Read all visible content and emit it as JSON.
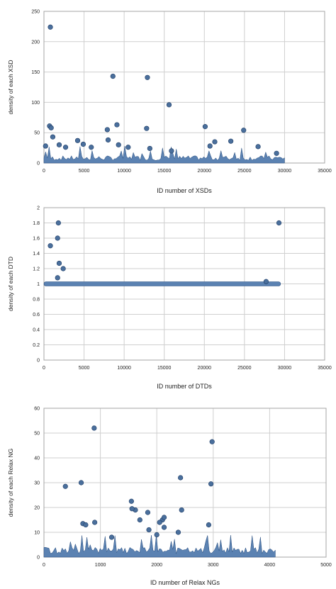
{
  "chart_data": [
    {
      "type": "scatter",
      "xlabel": "ID number of XSDs",
      "ylabel": "density of each XSD",
      "xlim": [
        0,
        35000
      ],
      "ylim": [
        0,
        250
      ],
      "x_ticks": [
        "0",
        "5000",
        "10000",
        "15000",
        "20000",
        "25000",
        "30000",
        "35000"
      ],
      "y_ticks": [
        "0",
        "50",
        "100",
        "150",
        "200",
        "250"
      ],
      "grid": true,
      "x_max_id": 30000,
      "baseline_band": {
        "typical_max": 12,
        "peak_max": 28
      },
      "points": [
        {
          "x": 800,
          "y": 224
        },
        {
          "x": 8600,
          "y": 143
        },
        {
          "x": 12900,
          "y": 141
        },
        {
          "x": 15600,
          "y": 96
        },
        {
          "x": 700,
          "y": 61
        },
        {
          "x": 900,
          "y": 58
        },
        {
          "x": 9100,
          "y": 63
        },
        {
          "x": 7900,
          "y": 55
        },
        {
          "x": 12800,
          "y": 57
        },
        {
          "x": 20100,
          "y": 60
        },
        {
          "x": 24900,
          "y": 54
        },
        {
          "x": 4200,
          "y": 37
        },
        {
          "x": 8000,
          "y": 38
        },
        {
          "x": 1100,
          "y": 43
        },
        {
          "x": 1900,
          "y": 30
        },
        {
          "x": 4900,
          "y": 31
        },
        {
          "x": 23300,
          "y": 36
        },
        {
          "x": 200,
          "y": 28
        },
        {
          "x": 10500,
          "y": 26
        },
        {
          "x": 9300,
          "y": 30
        },
        {
          "x": 2700,
          "y": 26
        },
        {
          "x": 5900,
          "y": 26
        },
        {
          "x": 13200,
          "y": 24
        },
        {
          "x": 15900,
          "y": 20
        },
        {
          "x": 21300,
          "y": 35
        },
        {
          "x": 20700,
          "y": 28
        },
        {
          "x": 26700,
          "y": 27
        },
        {
          "x": 29000,
          "y": 16
        }
      ]
    },
    {
      "type": "scatter",
      "xlabel": "ID number of DTDs",
      "ylabel": "density of each DTD",
      "xlim": [
        0,
        35000
      ],
      "ylim": [
        0,
        2
      ],
      "x_ticks": [
        "0",
        "5000",
        "10000",
        "15000",
        "20000",
        "25000",
        "30000",
        "35000"
      ],
      "y_ticks": [
        "0",
        "0.2",
        "0.4",
        "0.6",
        "0.8",
        "1",
        "1.2",
        "1.4",
        "1.6",
        "1.8",
        "2"
      ],
      "grid": true,
      "x_max_id": 29500,
      "baseline_value": 1,
      "points": [
        {
          "x": 1800,
          "y": 1.8
        },
        {
          "x": 1700,
          "y": 1.6
        },
        {
          "x": 800,
          "y": 1.5
        },
        {
          "x": 1900,
          "y": 1.27
        },
        {
          "x": 2400,
          "y": 1.2
        },
        {
          "x": 1700,
          "y": 1.08
        },
        {
          "x": 27700,
          "y": 1.03
        },
        {
          "x": 29300,
          "y": 1.8
        }
      ]
    },
    {
      "type": "scatter",
      "xlabel": "ID number of Relax NGs",
      "ylabel": "density of each Relax NG",
      "xlim": [
        0,
        5000
      ],
      "ylim": [
        0,
        60
      ],
      "x_ticks": [
        "0",
        "1000",
        "2000",
        "3000",
        "4000",
        "5000"
      ],
      "y_ticks": [
        "0",
        "10",
        "20",
        "30",
        "40",
        "50",
        "60"
      ],
      "grid": true,
      "x_max_id": 4100,
      "baseline_band": {
        "typical_max": 4,
        "peak_max": 9
      },
      "points": [
        {
          "x": 890,
          "y": 52
        },
        {
          "x": 2980,
          "y": 46.5
        },
        {
          "x": 2420,
          "y": 32
        },
        {
          "x": 660,
          "y": 30
        },
        {
          "x": 2960,
          "y": 29.5
        },
        {
          "x": 380,
          "y": 28.5
        },
        {
          "x": 1550,
          "y": 22.5
        },
        {
          "x": 1620,
          "y": 19
        },
        {
          "x": 1840,
          "y": 18
        },
        {
          "x": 2440,
          "y": 19
        },
        {
          "x": 1560,
          "y": 19.5
        },
        {
          "x": 1700,
          "y": 15
        },
        {
          "x": 2100,
          "y": 15
        },
        {
          "x": 2050,
          "y": 14
        },
        {
          "x": 2130,
          "y": 12
        },
        {
          "x": 690,
          "y": 13.5
        },
        {
          "x": 740,
          "y": 13
        },
        {
          "x": 900,
          "y": 14
        },
        {
          "x": 2920,
          "y": 13
        },
        {
          "x": 1860,
          "y": 11
        },
        {
          "x": 2000,
          "y": 9
        },
        {
          "x": 2380,
          "y": 10
        },
        {
          "x": 1200,
          "y": 8
        },
        {
          "x": 2130,
          "y": 16
        }
      ]
    }
  ]
}
